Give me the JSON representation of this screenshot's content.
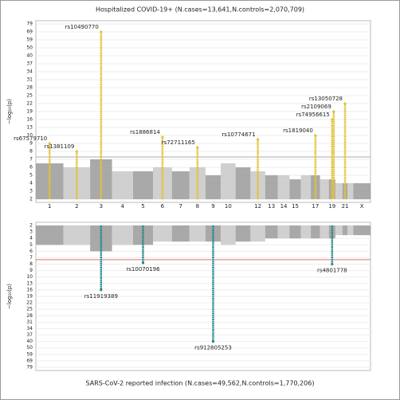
{
  "chart_data": [
    {
      "type": "manhattan",
      "title": "Hospitalized COVID-19+ (N.cases=13,641,N.controls=2,070,709)",
      "ylabel": "−log₁₀(p)",
      "categories": [
        "1",
        "2",
        "3",
        "4",
        "5",
        "6",
        "7",
        "8",
        "9",
        "10",
        null,
        "12",
        "13",
        "14",
        "15",
        null,
        "17",
        null,
        "19",
        null,
        "21",
        null,
        "X"
      ],
      "ylim": [
        2,
        79
      ],
      "yticks": [
        2,
        3,
        4,
        5,
        6,
        7,
        8,
        9,
        10,
        13,
        16,
        19,
        22,
        25,
        28,
        31,
        34,
        37,
        40,
        50,
        59,
        69,
        79
      ],
      "threshold": 7.3,
      "threshold_color": "#aaaaaa",
      "background": [
        6.5,
        6,
        7,
        5.5,
        5.5,
        6,
        5.5,
        6,
        5,
        6.5,
        6,
        5.5,
        5,
        5,
        4.5,
        5,
        5,
        4.5,
        4.5,
        4,
        4,
        4,
        4
      ],
      "background_colors": [
        "#9a9a9a",
        "#c8c8c8"
      ],
      "hit_color": "#e3c23a",
      "hits": [
        {
          "name": "rs67579710",
          "chrom": "1",
          "value": 9
        },
        {
          "name": "rs1381109",
          "chrom": "2",
          "value": 8
        },
        {
          "name": "rs10490770",
          "chrom": "3",
          "value": 69
        },
        {
          "name": "rs1886814",
          "chrom": "6",
          "value": 9.8
        },
        {
          "name": "rs72711165",
          "chrom": "8",
          "value": 8.5
        },
        {
          "name": "rs10774671",
          "chrom": "12",
          "value": 9.5
        },
        {
          "name": "rs1819040",
          "chrom": "17",
          "value": 10
        },
        {
          "name": "rs74956615",
          "chrom": "19",
          "value": 16
        },
        {
          "name": "rs2109069",
          "chrom": "19",
          "value": 19
        },
        {
          "name": "rs13050728",
          "chrom": "21",
          "value": 22
        }
      ]
    },
    {
      "type": "manhattan",
      "title": "SARS-CoV-2 reported infection (N.cases=49,562,N.controls=1,770,206)",
      "ylabel": "−log₁₀(p)",
      "ylim": [
        2,
        79
      ],
      "yticks": [
        2,
        3,
        4,
        5,
        6,
        7,
        8,
        9,
        10,
        13,
        16,
        19,
        22,
        25,
        28,
        31,
        34,
        37,
        40,
        50,
        59,
        69,
        79
      ],
      "threshold": 7.3,
      "threshold_color": "#e07070",
      "background": [
        5,
        5,
        6,
        5,
        5,
        4.5,
        4.5,
        4.5,
        4.5,
        5,
        4.5,
        4.5,
        4,
        4,
        4,
        4,
        4,
        4,
        4,
        3.5,
        3.5,
        3.5,
        3.5
      ],
      "background_colors": [
        "#9a9a9a",
        "#c8c8c8"
      ],
      "hit_color": "#2a8a8a",
      "hits": [
        {
          "name": "rs11919389",
          "chrom": "3",
          "value": 16
        },
        {
          "name": "rs10070196",
          "chrom": "5",
          "value": 7.8
        },
        {
          "name": "rs912805253",
          "chrom": "9",
          "value": 40
        },
        {
          "name": "rs4801778",
          "chrom": "19",
          "value": 8
        }
      ]
    }
  ]
}
